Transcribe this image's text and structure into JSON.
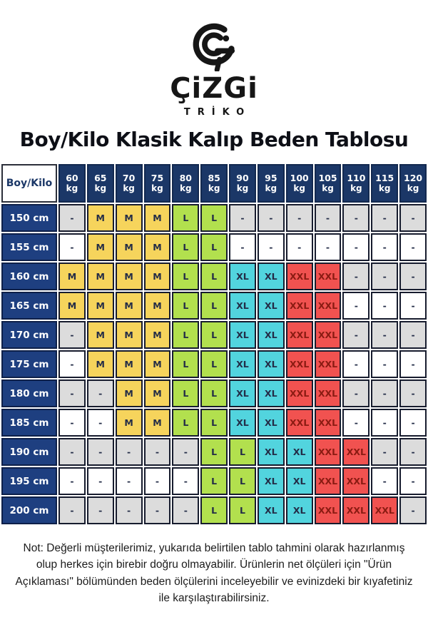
{
  "logo": {
    "mark_icon": "cizgi-logo-mark",
    "brand": "ÇiZGi",
    "subbrand": "TRİKO"
  },
  "title": "Boy/Kilo Klasik Kalıp Beden Tablosu",
  "table": {
    "corner_label": "Boy/Kilo",
    "weight_unit": "kg",
    "weights": [
      "60",
      "65",
      "70",
      "75",
      "80",
      "85",
      "90",
      "95",
      "100",
      "105",
      "110",
      "115",
      "120"
    ],
    "rows": [
      {
        "height": "150 cm",
        "cells": [
          "-",
          "M",
          "M",
          "M",
          "L",
          "L",
          "-",
          "-",
          "-",
          "-",
          "-",
          "-",
          "-"
        ]
      },
      {
        "height": "155 cm",
        "cells": [
          "-",
          "M",
          "M",
          "M",
          "L",
          "L",
          "-",
          "-",
          "-",
          "-",
          "-",
          "-",
          "-"
        ]
      },
      {
        "height": "160 cm",
        "cells": [
          "M",
          "M",
          "M",
          "M",
          "L",
          "L",
          "XL",
          "XL",
          "XXL",
          "XXL",
          "-",
          "-",
          "-"
        ]
      },
      {
        "height": "165 cm",
        "cells": [
          "M",
          "M",
          "M",
          "M",
          "L",
          "L",
          "XL",
          "XL",
          "XXL",
          "XXL",
          "-",
          "-",
          "-"
        ]
      },
      {
        "height": "170 cm",
        "cells": [
          "-",
          "M",
          "M",
          "M",
          "L",
          "L",
          "XL",
          "XL",
          "XXL",
          "XXL",
          "-",
          "-",
          "-"
        ]
      },
      {
        "height": "175 cm",
        "cells": [
          "-",
          "M",
          "M",
          "M",
          "L",
          "L",
          "XL",
          "XL",
          "XXL",
          "XXL",
          "-",
          "-",
          "-"
        ]
      },
      {
        "height": "180 cm",
        "cells": [
          "-",
          "-",
          "M",
          "M",
          "L",
          "L",
          "XL",
          "XL",
          "XXL",
          "XXL",
          "-",
          "-",
          "-"
        ]
      },
      {
        "height": "185 cm",
        "cells": [
          "-",
          "-",
          "M",
          "M",
          "L",
          "L",
          "XL",
          "XL",
          "XXL",
          "XXL",
          "-",
          "-",
          "-"
        ]
      },
      {
        "height": "190 cm",
        "cells": [
          "-",
          "-",
          "-",
          "-",
          "-",
          "L",
          "L",
          "XL",
          "XL",
          "XXL",
          "XXL",
          "-",
          "-"
        ]
      },
      {
        "height": "195 cm",
        "cells": [
          "-",
          "-",
          "-",
          "-",
          "-",
          "L",
          "L",
          "XL",
          "XL",
          "XXL",
          "XXL",
          "-",
          "-"
        ]
      },
      {
        "height": "200 cm",
        "cells": [
          "-",
          "-",
          "-",
          "-",
          "-",
          "L",
          "L",
          "XL",
          "XL",
          "XXL",
          "XXL",
          "XXL",
          "-"
        ]
      }
    ]
  },
  "note": "Not: Değerli müşterilerimiz, yukarıda belirtilen tablo tahmini olarak hazırlanmış olup herkes için birebir doğru olmayabilir. Ürünlerin net ölçüleri için \"Ürün Açıklaması\" bölümünden beden ölçülerini inceleyebilir ve evinizdeki bir kıyafetiniz ile karşılaştırabilirsiniz.",
  "colors": {
    "header_navy": "#1b3767",
    "row_navy": "#1e3f80",
    "size_m": "#f6d45c",
    "size_l": "#b2e04e",
    "size_xl": "#52d4de",
    "size_xxl": "#f15250",
    "dash_gray": "#dcdcdc",
    "dash_white": "#ffffff",
    "xxl_text": "#8a1b12"
  }
}
